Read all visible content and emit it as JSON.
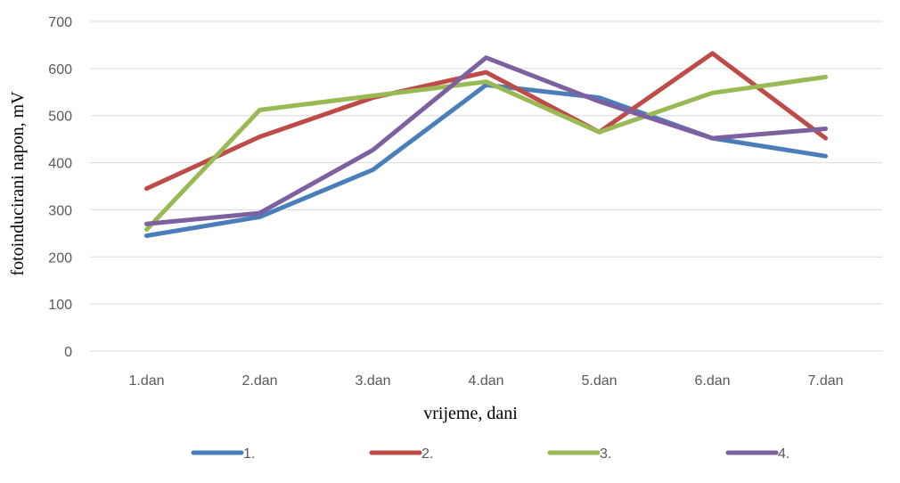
{
  "chart_data": {
    "type": "line",
    "title": "",
    "xlabel": "vrijeme, dani",
    "ylabel": "fotoinducirani  napon, mV",
    "ylim": [
      0,
      700
    ],
    "yticks": [
      0,
      100,
      200,
      300,
      400,
      500,
      600,
      700
    ],
    "grid": true,
    "legend_position": "bottom",
    "categories": [
      "1.dan",
      "2.dan",
      "3.dan",
      "4.dan",
      "5.dan",
      "6.dan",
      "7.dan"
    ],
    "series": [
      {
        "name": "1.",
        "color": "#4a7ebb",
        "values": [
          245,
          285,
          385,
          565,
          538,
          452,
          414
        ]
      },
      {
        "name": "2.",
        "color": "#be4b48",
        "values": [
          345,
          455,
          538,
          592,
          465,
          632,
          452
        ]
      },
      {
        "name": "3.",
        "color": "#98b954",
        "values": [
          258,
          512,
          542,
          572,
          465,
          548,
          582
        ]
      },
      {
        "name": "4.",
        "color": "#7d60a0",
        "values": [
          270,
          293,
          427,
          623,
          530,
          452,
          472
        ]
      }
    ]
  }
}
